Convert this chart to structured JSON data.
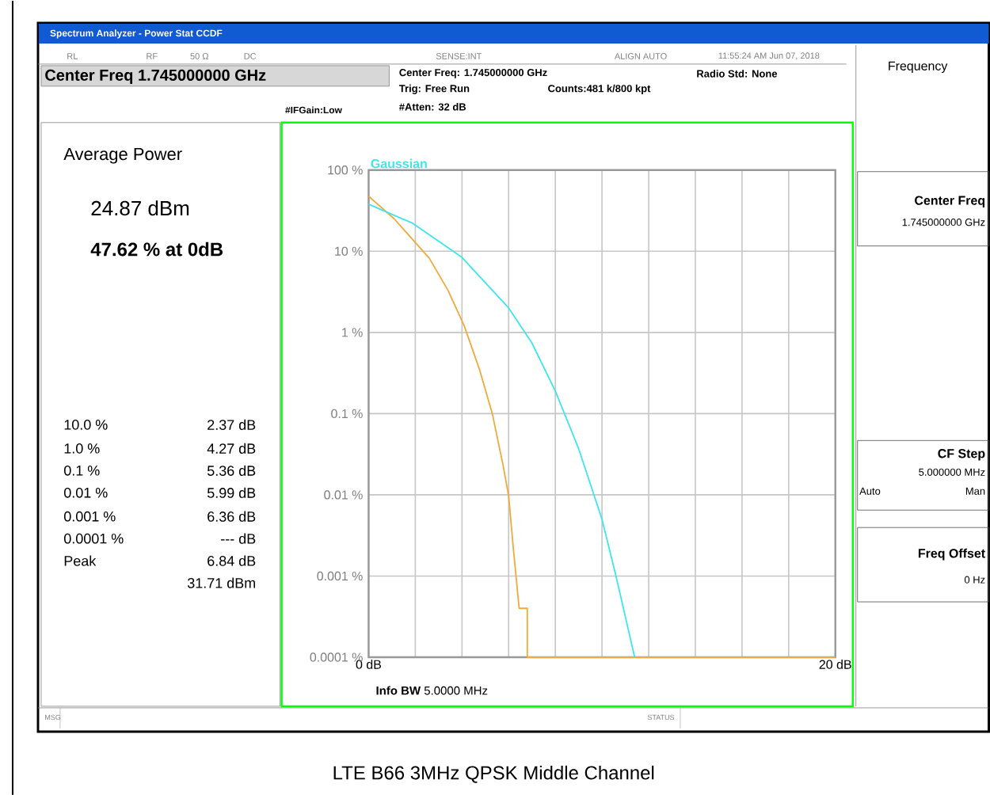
{
  "chart_data": {
    "type": "line",
    "title": "LTE B66 3MHz QPSK Middle Channel",
    "subtitle": "Spectrum Analyzer - Power Stat CCDF",
    "xlabel": "**Info BW** 5.0000 MHz",
    "annotations": [
      "RL",
      "RF",
      "50 Ω",
      "DC",
      "SENSE:INT",
      "ALIGN AUTO",
      "11:55:24 AM Jun 07, 2018",
      "Center Freq 1.745000000 GHz",
      "Center Freq: 1.745000000 GHz",
      "Trig: Free Run",
      "#Atten: 32 dB",
      "Counts:481 k/800 kpt",
      "Radio Std: None",
      "#IFGain:Low",
      "Frequency",
      "Average Power",
      "24.87 dBm",
      "47.62 % at 0dB",
      "10.0 %",
      "2.37 dB",
      "1.0 %",
      "4.27 dB",
      "0.1 %",
      "5.36 dB",
      "0.01 %",
      "5.99 dB",
      "0.001 %",
      "6.36 dB",
      "0.0001 %",
      "--- dB",
      "Peak",
      "6.84 dB",
      "31.71 dBm",
      "Center Freq",
      "1.745000000 GHz",
      "CF Step",
      "5.000000 MHz",
      "Auto",
      "Man",
      "Freq Offset",
      "0 Hz",
      "MSG",
      "STATUS"
    ],
    "log": "y",
    "grid": true,
    "marker": "none",
    "line_style": "solid",
    "xlim": [
      0,
      20
    ],
    "ylim": [
      0.0001,
      100
    ],
    "xticks": [
      {
        "value": 0,
        "label": "0 dB"
      },
      {
        "value": 2,
        "label": null
      },
      {
        "value": 4,
        "label": null
      },
      {
        "value": 6,
        "label": null
      },
      {
        "value": 8,
        "label": null
      },
      {
        "value": 10,
        "label": null
      },
      {
        "value": 12,
        "label": null
      },
      {
        "value": 14,
        "label": null
      },
      {
        "value": 16,
        "label": null
      },
      {
        "value": 18,
        "label": null
      },
      {
        "value": 20,
        "label": "20 dB"
      }
    ],
    "yticks": [
      {
        "value": 100,
        "label": "100 %"
      },
      {
        "value": 10,
        "label": "10 %"
      },
      {
        "value": 1,
        "label": "1 %"
      },
      {
        "value": 0.1,
        "label": "0.1 %"
      },
      {
        "value": 0.01,
        "label": "0.01 %"
      },
      {
        "value": 0.001,
        "label": "0.001 %"
      },
      {
        "value": 0.0001,
        "label": "0.0001 %"
      }
    ],
    "series": [
      {
        "color": "#f2a93b",
        "x": [
          0,
          1.1,
          2.6,
          3.4,
          4.1,
          4.75,
          5.3,
          5.75,
          6.0,
          6.2,
          6.45,
          6.8,
          6.8,
          20
        ],
        "values": [
          47.62,
          25,
          8.2,
          3.3,
          1.2,
          0.35,
          0.1,
          0.024,
          0.0097,
          0.0022,
          0.0004,
          0.0004,
          0.0001,
          0.0001
        ]
      },
      {
        "name": "Gaussian",
        "color": "#3ee6ec",
        "x": [
          0,
          1.9,
          4.0,
          6.0,
          7.0,
          8.0,
          9.0,
          10.0,
          10.6,
          11.4
        ],
        "values": [
          38,
          22,
          8.4,
          2.0,
          0.74,
          0.19,
          0.037,
          0.005,
          0.001,
          0.0001
        ]
      }
    ]
  }
}
